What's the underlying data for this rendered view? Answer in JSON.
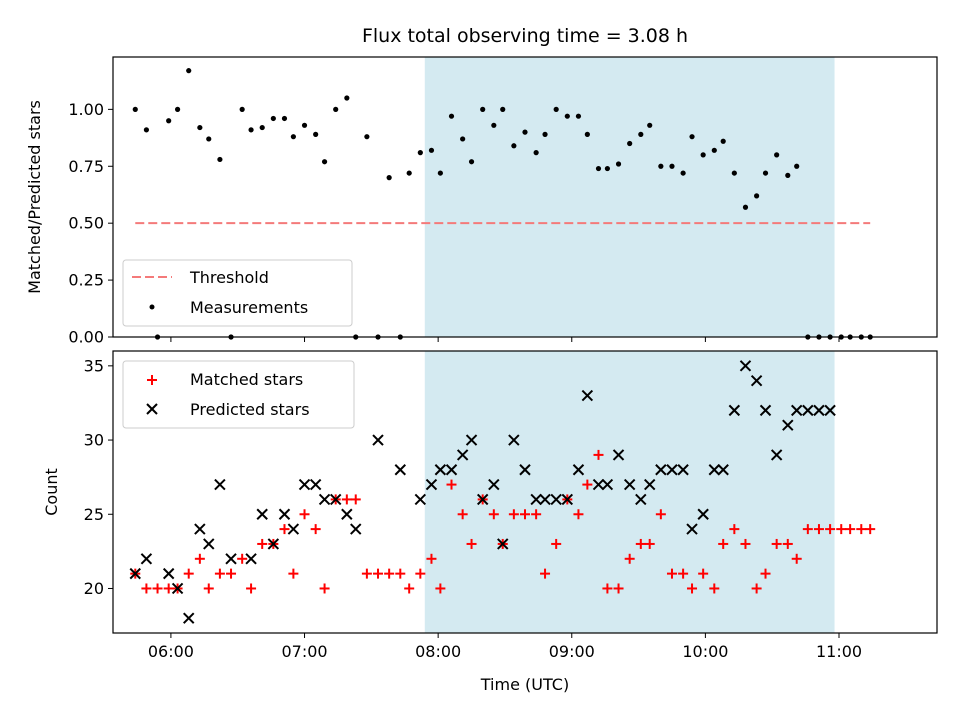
{
  "chart_data": [
    {
      "type": "scatter",
      "title": "Flux total observing time = 3.08 h",
      "ylabel": "Matched/Predicted stars",
      "ylim": [
        0,
        1.23
      ],
      "xlim": [
        "05:34",
        "11:44"
      ],
      "yticks": [
        "0.00",
        "0.25",
        "0.50",
        "0.75",
        "1.00"
      ],
      "shaded_region": {
        "start": "07:54",
        "end": "10:58",
        "color": "#d4eaf1"
      },
      "threshold": {
        "name": "Threshold",
        "value": 0.5,
        "x_start": "05:44",
        "x_end": "11:14",
        "color": "#f47a7a"
      },
      "series": [
        {
          "name": "Measurements",
          "color": "#000000",
          "x": [
            "05:44",
            "05:49",
            "05:54",
            "05:59",
            "06:03",
            "06:08",
            "06:13",
            "06:17",
            "06:22",
            "06:27",
            "06:32",
            "06:36",
            "06:41",
            "06:46",
            "06:51",
            "06:55",
            "07:00",
            "07:05",
            "07:09",
            "07:14",
            "07:19",
            "07:23",
            "07:28",
            "07:33",
            "07:38",
            "07:43",
            "07:47",
            "07:52",
            "07:57",
            "08:01",
            "08:06",
            "08:11",
            "08:15",
            "08:20",
            "08:25",
            "08:29",
            "08:34",
            "08:39",
            "08:44",
            "08:48",
            "08:53",
            "08:58",
            "09:03",
            "09:07",
            "09:12",
            "09:16",
            "09:21",
            "09:26",
            "09:31",
            "09:35",
            "09:40",
            "09:45",
            "09:50",
            "09:54",
            "09:59",
            "10:04",
            "10:08",
            "10:13",
            "10:18",
            "10:23",
            "10:27",
            "10:32",
            "10:37",
            "10:41",
            "10:46",
            "10:51",
            "10:56",
            "11:01",
            "11:05",
            "11:10",
            "11:14"
          ],
          "y": [
            1.0,
            0.91,
            0.0,
            0.95,
            1.0,
            1.17,
            0.92,
            0.87,
            0.78,
            0.0,
            1.0,
            0.91,
            0.92,
            0.96,
            0.96,
            0.88,
            0.93,
            0.89,
            0.77,
            1.0,
            1.05,
            0.0,
            0.88,
            0.0,
            0.7,
            0.0,
            0.72,
            0.81,
            0.82,
            0.72,
            0.97,
            0.87,
            0.77,
            1.0,
            0.93,
            1.0,
            0.84,
            0.9,
            0.81,
            0.89,
            1.0,
            0.97,
            0.97,
            0.89,
            0.74,
            0.74,
            0.76,
            0.85,
            0.89,
            0.93,
            0.75,
            0.75,
            0.72,
            0.88,
            0.8,
            0.82,
            0.86,
            0.72,
            0.57,
            0.62,
            0.72,
            0.8,
            0.71,
            0.75,
            0.0,
            0.0,
            0.0,
            0.0,
            0.0,
            0.0,
            0.0
          ]
        }
      ]
    },
    {
      "type": "scatter",
      "ylabel": "Count",
      "xlabel": "Time (UTC)",
      "ylim": [
        17,
        36
      ],
      "xlim": [
        "05:34",
        "11:44"
      ],
      "yticks": [
        "20",
        "25",
        "30",
        "35"
      ],
      "xticks": [
        "06:00",
        "07:00",
        "08:00",
        "09:00",
        "10:00",
        "11:00"
      ],
      "shaded_region": {
        "start": "07:54",
        "end": "10:58",
        "color": "#d4eaf1"
      },
      "series": [
        {
          "name": "Matched stars",
          "color": "#ff0000",
          "x": [
            "05:44",
            "05:49",
            "05:54",
            "05:59",
            "06:03",
            "06:08",
            "06:13",
            "06:17",
            "06:22",
            "06:27",
            "06:32",
            "06:36",
            "06:41",
            "06:46",
            "06:51",
            "06:55",
            "07:00",
            "07:05",
            "07:09",
            "07:14",
            "07:19",
            "07:23",
            "07:28",
            "07:33",
            "07:38",
            "07:43",
            "07:47",
            "07:52",
            "07:57",
            "08:01",
            "08:06",
            "08:11",
            "08:15",
            "08:20",
            "08:25",
            "08:29",
            "08:34",
            "08:39",
            "08:44",
            "08:48",
            "08:53",
            "08:58",
            "09:03",
            "09:07",
            "09:12",
            "09:16",
            "09:21",
            "09:26",
            "09:31",
            "09:35",
            "09:40",
            "09:45",
            "09:50",
            "09:54",
            "09:59",
            "10:04",
            "10:08",
            "10:13",
            "10:18",
            "10:23",
            "10:27",
            "10:32",
            "10:37",
            "10:41",
            "10:46",
            "10:51",
            "10:56",
            "11:01",
            "11:05",
            "11:10",
            "11:14"
          ],
          "y": [
            21,
            20,
            20,
            20,
            20,
            21,
            22,
            20,
            21,
            21,
            22,
            20,
            23,
            23,
            24,
            21,
            25,
            24,
            20,
            26,
            26,
            26,
            21,
            21,
            21,
            21,
            20,
            21,
            22,
            20,
            27,
            25,
            23,
            26,
            25,
            23,
            25,
            25,
            25,
            21,
            23,
            26,
            25,
            27,
            29,
            20,
            20,
            22,
            23,
            23,
            25,
            21,
            21,
            20,
            21,
            20,
            23,
            24,
            23,
            20,
            21,
            23,
            23,
            22,
            24,
            24,
            24,
            24,
            24,
            24,
            24
          ]
        },
        {
          "name": "Predicted stars",
          "color": "#000000",
          "x": [
            "05:44",
            "05:49",
            "05:59",
            "06:03",
            "06:08",
            "06:13",
            "06:17",
            "06:22",
            "06:27",
            "06:36",
            "06:41",
            "06:46",
            "06:51",
            "06:55",
            "07:00",
            "07:05",
            "07:09",
            "07:14",
            "07:19",
            "07:23",
            "07:33",
            "07:43",
            "07:52",
            "07:57",
            "08:01",
            "08:06",
            "08:11",
            "08:15",
            "08:20",
            "08:25",
            "08:29",
            "08:34",
            "08:39",
            "08:44",
            "08:48",
            "08:53",
            "08:58",
            "09:03",
            "09:07",
            "09:12",
            "09:16",
            "09:21",
            "09:26",
            "09:31",
            "09:35",
            "09:40",
            "09:45",
            "09:50",
            "09:54",
            "09:59",
            "10:04",
            "10:08",
            "10:13",
            "10:18",
            "10:23",
            "10:27",
            "10:32",
            "10:37",
            "10:41",
            "10:46",
            "10:51",
            "10:56"
          ],
          "y": [
            21,
            22,
            21,
            20,
            18,
            24,
            23,
            27,
            22,
            22,
            25,
            23,
            25,
            24,
            27,
            27,
            26,
            26,
            25,
            24,
            30,
            28,
            26,
            27,
            28,
            28,
            29,
            30,
            26,
            27,
            23,
            30,
            28,
            26,
            26,
            26,
            26,
            28,
            33,
            27,
            27,
            29,
            27,
            26,
            27,
            28,
            28,
            28,
            24,
            25,
            28,
            28,
            32,
            35,
            34,
            32,
            29,
            31,
            32,
            32,
            32,
            32
          ]
        }
      ]
    }
  ],
  "legend_top": {
    "items": [
      "Threshold",
      "Measurements"
    ]
  },
  "legend_bottom": {
    "items": [
      "Matched stars",
      "Predicted stars"
    ]
  }
}
